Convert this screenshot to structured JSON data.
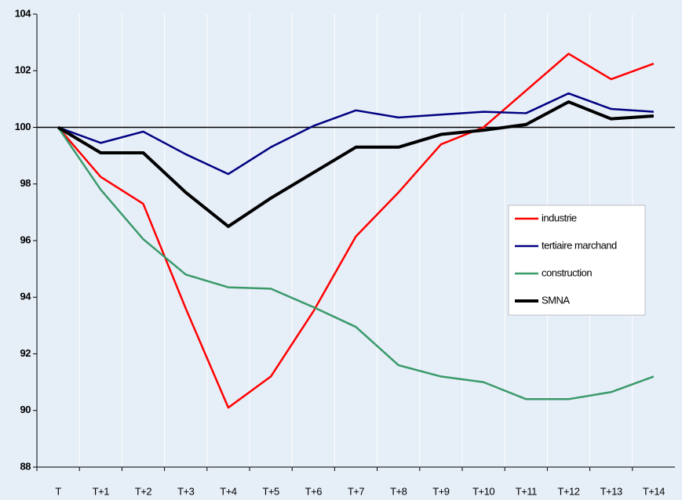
{
  "chart_data": {
    "type": "line",
    "categories": [
      "T",
      "T+1",
      "T+2",
      "T+3",
      "T+4",
      "T+5",
      "T+6",
      "T+7",
      "T+8",
      "T+9",
      "T+10",
      "T+11",
      "T+12",
      "T+13",
      "T+14"
    ],
    "series": [
      {
        "name": "industrie",
        "color": "#ff0000",
        "values": [
          100,
          98.25,
          97.3,
          93.6,
          90.1,
          91.2,
          93.5,
          96.15,
          97.7,
          99.4,
          100,
          101.3,
          102.6,
          101.7,
          102.25
        ]
      },
      {
        "name": "tertiaire marchand",
        "color": "#000080",
        "values": [
          100,
          99.45,
          99.85,
          99.05,
          98.35,
          99.3,
          100.05,
          100.6,
          100.35,
          100.45,
          100.55,
          100.5,
          101.2,
          100.65,
          100.55
        ]
      },
      {
        "name": "construction",
        "color": "#3a9a6a",
        "values": [
          100,
          97.8,
          96.05,
          94.8,
          94.35,
          94.3,
          93.65,
          92.95,
          91.6,
          91.2,
          91.0,
          90.4,
          90.4,
          90.65,
          91.2
        ]
      },
      {
        "name": "SMNA",
        "color": "#000000",
        "values": [
          100,
          99.1,
          99.1,
          97.7,
          96.5,
          97.5,
          98.4,
          99.3,
          99.3,
          99.75,
          99.9,
          100.1,
          100.9,
          100.3,
          100.4
        ]
      }
    ],
    "ylim": [
      88,
      104
    ],
    "yticks": [
      88,
      90,
      92,
      94,
      96,
      98,
      100,
      102,
      104
    ],
    "hline": 100,
    "grid": true,
    "legend": "right"
  }
}
